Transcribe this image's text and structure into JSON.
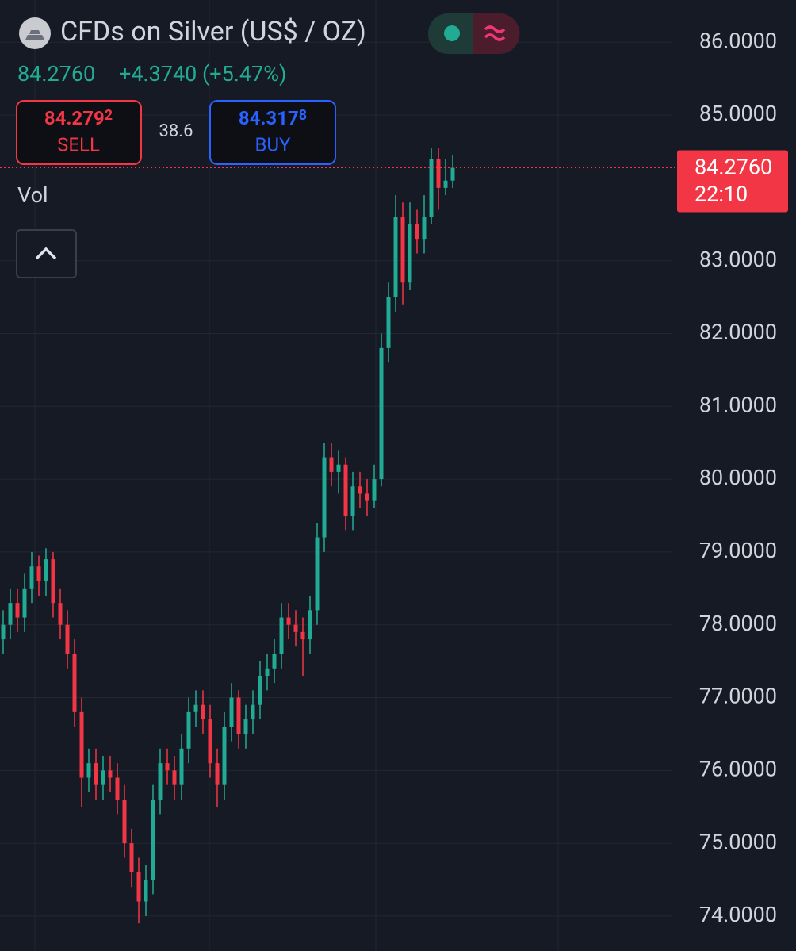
{
  "header": {
    "title": "CFDs on Silver (US$ / OZ)",
    "change": "+4.3740 (+5.47%)",
    "sell": {
      "price": "84.279",
      "fraction": "2",
      "label": "SELL"
    },
    "spread": "38.6",
    "buy": {
      "price": "84.317",
      "fraction": "8",
      "label": "BUY"
    },
    "volume_label": "Vol"
  },
  "chart_data": {
    "type": "candlestick",
    "up_color": "#22ab94",
    "down_color": "#f23645",
    "open": [
      77.8,
      78.0,
      78.3,
      78.1,
      78.5,
      78.8,
      78.6,
      78.9,
      78.3,
      78.0,
      77.6,
      76.8,
      75.9,
      76.1,
      75.8,
      76.0,
      75.9,
      75.6,
      75.0,
      74.6,
      74.2,
      74.5,
      75.6,
      76.1,
      76.0,
      75.8,
      76.3,
      76.8,
      76.9,
      76.7,
      76.1,
      75.8,
      76.6,
      77.0,
      76.5,
      76.7,
      76.9,
      77.3,
      77.4,
      77.6,
      78.1,
      78.0,
      77.9,
      77.8,
      78.2,
      79.2,
      80.3,
      80.1,
      80.2,
      79.5,
      79.9,
      79.8,
      79.7,
      80.0,
      81.8,
      82.5,
      83.6,
      82.7,
      83.5,
      83.3,
      83.6,
      84.4,
      84.0,
      84.1
    ],
    "high": [
      78.2,
      78.5,
      78.5,
      78.7,
      79.0,
      78.95,
      79.05,
      79.0,
      78.5,
      78.2,
      77.8,
      77.0,
      76.3,
      76.3,
      76.2,
      76.2,
      76.1,
      75.8,
      75.2,
      74.8,
      74.7,
      75.8,
      76.3,
      76.3,
      76.2,
      76.5,
      77.0,
      77.1,
      77.1,
      76.9,
      76.3,
      76.8,
      77.2,
      77.1,
      76.9,
      77.1,
      77.5,
      77.6,
      77.8,
      78.3,
      78.3,
      78.2,
      78.1,
      78.4,
      79.4,
      80.5,
      80.5,
      80.4,
      80.3,
      80.1,
      80.1,
      80.0,
      80.2,
      82.0,
      82.7,
      83.9,
      83.8,
      83.8,
      83.7,
      83.9,
      84.55,
      84.55,
      84.4,
      84.45
    ],
    "low": [
      77.6,
      77.8,
      77.9,
      77.9,
      78.3,
      78.4,
      78.4,
      78.1,
      77.8,
      77.4,
      76.6,
      75.5,
      75.7,
      75.6,
      75.6,
      75.7,
      75.4,
      74.8,
      74.4,
      73.9,
      74.0,
      74.3,
      75.4,
      75.8,
      75.6,
      75.6,
      76.1,
      76.6,
      76.5,
      75.9,
      75.5,
      75.6,
      76.4,
      76.3,
      76.3,
      76.5,
      76.7,
      77.1,
      77.2,
      77.4,
      77.8,
      77.7,
      77.3,
      77.6,
      78.0,
      79.0,
      79.9,
      79.8,
      79.3,
      79.3,
      79.6,
      79.5,
      79.6,
      79.9,
      81.6,
      82.3,
      82.4,
      82.6,
      83.1,
      83.1,
      83.5,
      83.7,
      83.9,
      84.0
    ],
    "close": [
      78.0,
      78.3,
      78.1,
      78.5,
      78.8,
      78.6,
      78.9,
      78.3,
      78.0,
      77.6,
      76.8,
      75.9,
      76.1,
      75.8,
      76.0,
      75.9,
      75.6,
      75.0,
      74.6,
      74.2,
      74.5,
      75.6,
      76.1,
      76.0,
      75.8,
      76.3,
      76.8,
      76.9,
      76.7,
      76.1,
      75.8,
      76.6,
      77.0,
      76.5,
      76.7,
      76.9,
      77.3,
      77.4,
      77.6,
      78.1,
      78.0,
      77.9,
      77.8,
      78.2,
      79.2,
      80.3,
      80.1,
      80.2,
      79.5,
      79.9,
      79.8,
      79.7,
      80.0,
      81.8,
      82.5,
      83.6,
      82.7,
      83.5,
      83.3,
      83.6,
      84.4,
      84.0,
      84.1,
      84.276
    ],
    "last_price": {
      "value": 84.276,
      "label": "84.2760"
    },
    "countdown": "22:10",
    "ylim": [
      73.52,
      86.58
    ],
    "yticks": [
      {
        "value": 74,
        "label": "74.0000"
      },
      {
        "value": 75,
        "label": "75.0000"
      },
      {
        "value": 76,
        "label": "76.0000"
      },
      {
        "value": 77,
        "label": "77.0000"
      },
      {
        "value": 78,
        "label": "78.0000"
      },
      {
        "value": 79,
        "label": "79.0000"
      },
      {
        "value": 80,
        "label": "80.0000"
      },
      {
        "value": 81,
        "label": "81.0000"
      },
      {
        "value": 82,
        "label": "82.0000"
      },
      {
        "value": 83,
        "label": "83.0000"
      },
      {
        "value": 85,
        "label": "85.0000"
      },
      {
        "value": 86,
        "label": "86.0000"
      }
    ],
    "grid": true
  }
}
